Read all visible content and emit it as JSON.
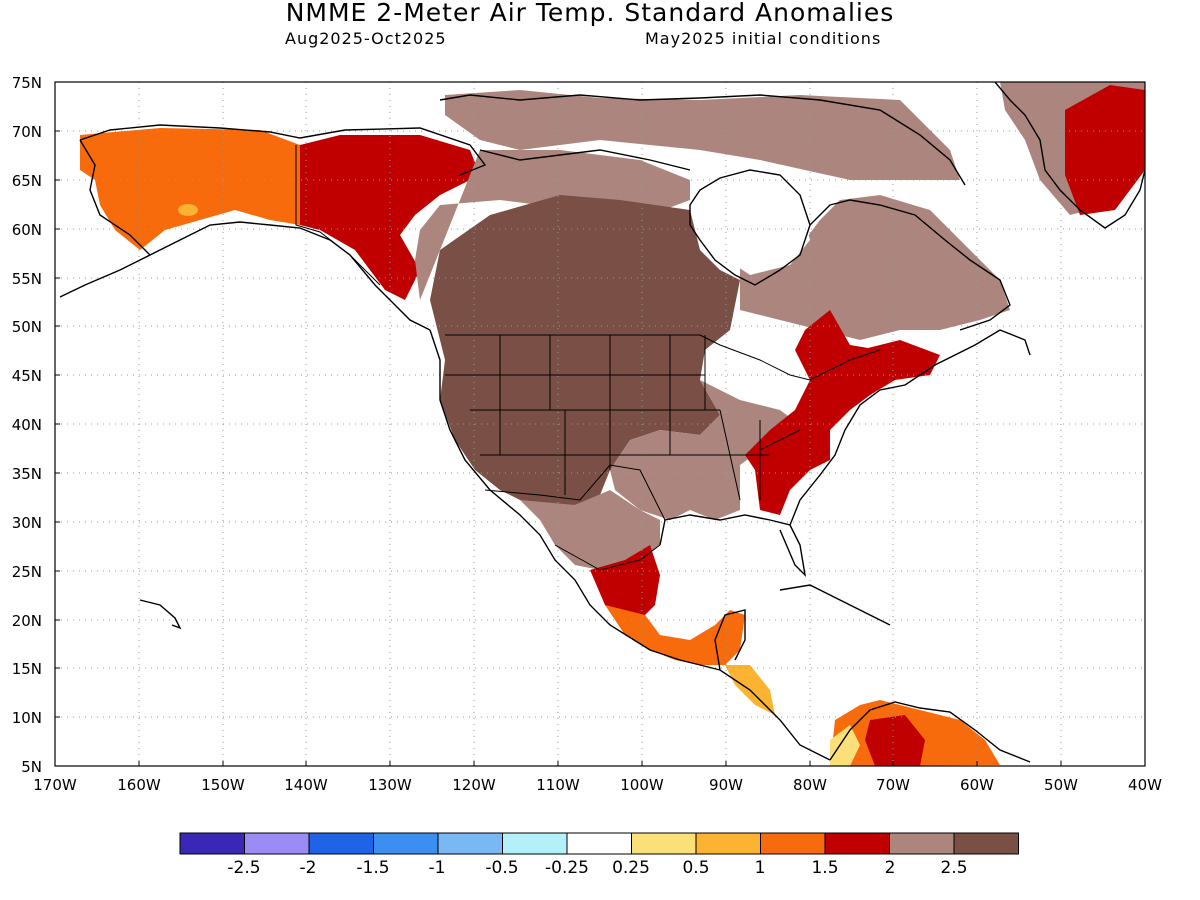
{
  "title": "NMME 2-Meter Air Temp. Standard Anomalies",
  "subtitle_period": "Aug2025-Oct2025",
  "subtitle_ic": "May2025 initial conditions",
  "lat_labels": [
    "75N",
    "70N",
    "65N",
    "60N",
    "55N",
    "50N",
    "45N",
    "40N",
    "35N",
    "30N",
    "25N",
    "20N",
    "15N",
    "10N",
    "5N"
  ],
  "lon_labels": [
    "170W",
    "160W",
    "150W",
    "140W",
    "130W",
    "120W",
    "110W",
    "100W",
    "90W",
    "80W",
    "70W",
    "60W",
    "50W",
    "40W"
  ],
  "legend": {
    "colors": [
      "#3b27b5",
      "#9b8cf5",
      "#1f64e6",
      "#3c8ff0",
      "#7ab7f5",
      "#b3f0fa",
      "#ffffff",
      "#fbe07a",
      "#fbb331",
      "#f86b0c",
      "#c00000",
      "#ac867e",
      "#7a4f45"
    ],
    "labels": [
      "-2.5",
      "-2",
      "-1.5",
      "-1",
      "-0.5",
      "-0.25",
      "0.25",
      "0.5",
      "1",
      "1.5",
      "2",
      "2.5"
    ]
  }
}
